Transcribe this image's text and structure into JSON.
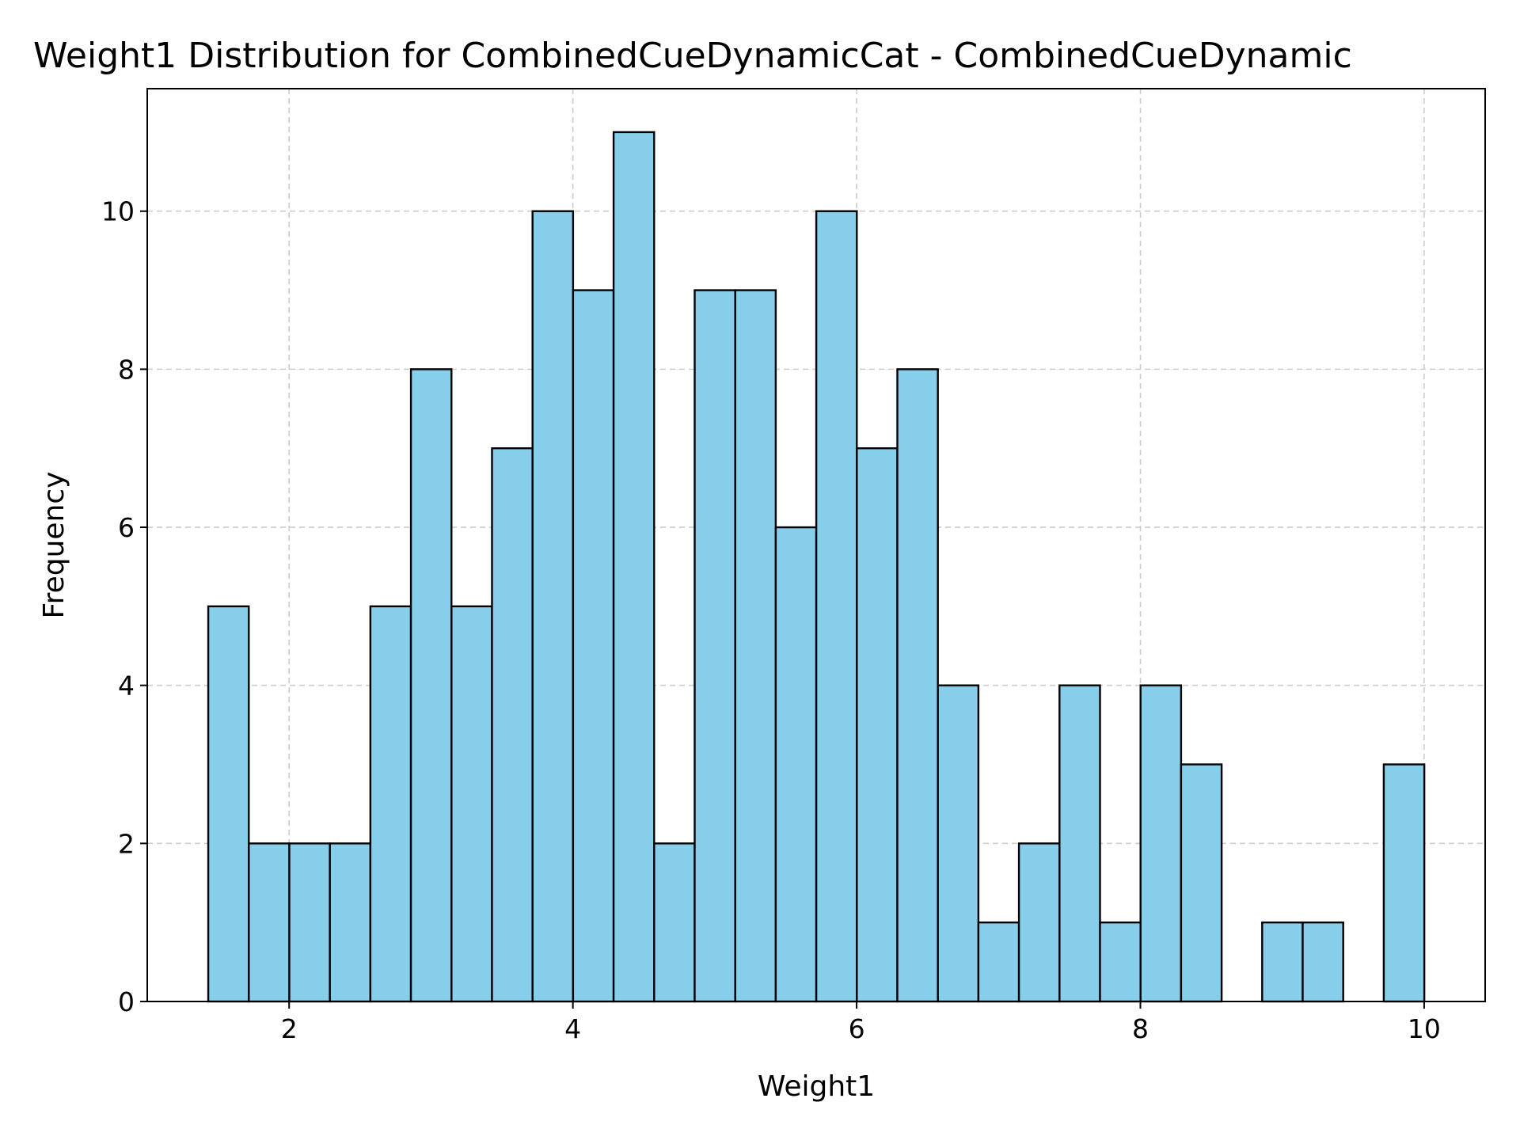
{
  "chart_data": {
    "type": "bar",
    "title": "Weight1 Distribution for CombinedCueDynamicCat - CombinedCueDynamic",
    "xlabel": "Weight1",
    "ylabel": "Frequency",
    "xlim": [
      1.0,
      10.43
    ],
    "ylim": [
      0,
      11.55
    ],
    "x_ticks": [
      2,
      4,
      6,
      8,
      10
    ],
    "y_ticks": [
      0,
      2,
      4,
      6,
      8,
      10
    ],
    "grid": true,
    "bar_color": "#87ceeb",
    "edge_color": "#000000",
    "bin_start": 1.43,
    "bin_width": 0.2857,
    "values": [
      5,
      2,
      2,
      2,
      5,
      8,
      5,
      7,
      10,
      9,
      11,
      2,
      9,
      9,
      6,
      10,
      7,
      8,
      4,
      1,
      2,
      4,
      1,
      4,
      3,
      0,
      1,
      1,
      0,
      3
    ]
  }
}
